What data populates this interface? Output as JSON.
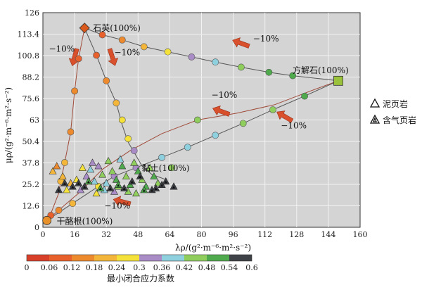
{
  "chart_data": {
    "type": "scatter",
    "title": "",
    "xlabel": "λρ/(g²·m⁻⁶·m²·s⁻²)",
    "ylabel": "μρ/(g²·m⁻⁶·m²·s⁻²)",
    "xlim": [
      0,
      160
    ],
    "ylim": [
      0,
      126
    ],
    "x_ticks": [
      "0",
      "16",
      "32",
      "48",
      "64",
      "80",
      "96",
      "112",
      "128",
      "144",
      "160"
    ],
    "y_ticks": [
      "0",
      "12.6",
      "25.2",
      "37.8",
      "50.4",
      "63",
      "75.6",
      "88.2",
      "100.8",
      "113.4",
      "126"
    ],
    "grid": true,
    "endmembers": [
      {
        "label": "石英(100%)",
        "x": 21,
        "y": 117,
        "color": "#d95a1c"
      },
      {
        "label": "方解石(100%)",
        "x": 149,
        "y": 86,
        "color": "#9bc23c"
      },
      {
        "label": "黏土(100%)",
        "x": 62,
        "y": 28,
        "color": "#6b6b6b"
      },
      {
        "label": "干酪根(100%)",
        "x": 2,
        "y": 4,
        "color": "#e8912a"
      }
    ],
    "arrow_labels": [
      "−10%",
      "−10%",
      "−10%",
      "−10%",
      "−10%",
      "−10%"
    ],
    "mixing_lines": [
      {
        "name": "石英-方解石",
        "points": [
          [
            21,
            117
          ],
          [
            30,
            113
          ],
          [
            40,
            110
          ],
          [
            51,
            106
          ],
          [
            63,
            103
          ],
          [
            75,
            100
          ],
          [
            87,
            97
          ],
          [
            100,
            94
          ],
          [
            114,
            91
          ],
          [
            126,
            89
          ],
          [
            149,
            86
          ]
        ]
      },
      {
        "name": "石英-干酪根",
        "points": [
          [
            21,
            117
          ],
          [
            18,
            99
          ],
          [
            16,
            80
          ],
          [
            14,
            56
          ],
          [
            11,
            38
          ],
          [
            9,
            27
          ],
          [
            8,
            20
          ],
          [
            6,
            14
          ],
          [
            4,
            8
          ],
          [
            2,
            4
          ]
        ]
      },
      {
        "name": "石英-黏土",
        "points": [
          [
            21,
            117
          ],
          [
            27,
            101
          ],
          [
            32,
            86
          ],
          [
            37,
            73
          ],
          [
            40,
            60
          ],
          [
            43,
            50
          ],
          [
            46,
            44
          ],
          [
            50,
            36
          ],
          [
            55,
            31
          ],
          [
            62,
            28
          ]
        ]
      },
      {
        "name": "方解石-干酪根",
        "points": [
          [
            149,
            86
          ],
          [
            135,
            80
          ],
          [
            117,
            72
          ],
          [
            98,
            67
          ],
          [
            78,
            63
          ],
          [
            60,
            55
          ],
          [
            44,
            45
          ],
          [
            30,
            34
          ],
          [
            18,
            20
          ],
          [
            6,
            8
          ],
          [
            2,
            4
          ]
        ]
      },
      {
        "name": "方解石-黏土",
        "points": [
          [
            149,
            86
          ],
          [
            132,
            77
          ],
          [
            116,
            69
          ],
          [
            101,
            61
          ],
          [
            87,
            54
          ],
          [
            73,
            47
          ],
          [
            60,
            41
          ],
          [
            47,
            35
          ],
          [
            36,
            30
          ],
          [
            28,
            24
          ],
          [
            15,
            14
          ],
          [
            2,
            4
          ]
        ]
      }
    ],
    "markers": [
      {
        "x": 30,
        "y": 113,
        "c": 0.06
      },
      {
        "x": 40,
        "y": 110,
        "c": 0.12
      },
      {
        "x": 51,
        "y": 106,
        "c": 0.18
      },
      {
        "x": 63,
        "y": 103,
        "c": 0.24
      },
      {
        "x": 75,
        "y": 100,
        "c": 0.3
      },
      {
        "x": 87,
        "y": 97,
        "c": 0.36
      },
      {
        "x": 100,
        "y": 94,
        "c": 0.42
      },
      {
        "x": 114,
        "y": 91,
        "c": 0.48
      },
      {
        "x": 126,
        "y": 89,
        "c": 0.48
      },
      {
        "x": 18,
        "y": 99,
        "c": 0.06
      },
      {
        "x": 16,
        "y": 80,
        "c": 0.12
      },
      {
        "x": 14,
        "y": 56,
        "c": 0.12
      },
      {
        "x": 11,
        "y": 38,
        "c": 0.18
      },
      {
        "x": 9,
        "y": 27,
        "c": 0.18
      },
      {
        "x": 27,
        "y": 101,
        "c": 0.06
      },
      {
        "x": 32,
        "y": 86,
        "c": 0.12
      },
      {
        "x": 37,
        "y": 73,
        "c": 0.18
      },
      {
        "x": 40,
        "y": 63,
        "c": 0.24
      },
      {
        "x": 43,
        "y": 52,
        "c": 0.24
      },
      {
        "x": 46,
        "y": 45,
        "c": 0.3
      },
      {
        "x": 132,
        "y": 77,
        "c": 0.48
      },
      {
        "x": 116,
        "y": 69,
        "c": 0.42
      },
      {
        "x": 101,
        "y": 61,
        "c": 0.42
      },
      {
        "x": 87,
        "y": 54,
        "c": 0.36
      },
      {
        "x": 78,
        "y": 63,
        "c": 0.42
      },
      {
        "x": 73,
        "y": 47,
        "c": 0.36
      },
      {
        "x": 60,
        "y": 41,
        "c": 0.36
      },
      {
        "x": 47,
        "y": 35,
        "c": 0.3
      },
      {
        "x": 36,
        "y": 30,
        "c": 0.3
      },
      {
        "x": 28,
        "y": 24,
        "c": 0.24
      },
      {
        "x": 15,
        "y": 14,
        "c": 0.18
      },
      {
        "x": 8,
        "y": 10,
        "c": 0.12
      },
      {
        "x": 4,
        "y": 7,
        "c": 0.06
      },
      {
        "x": 65,
        "y": 35,
        "c": 0.42
      }
    ],
    "mudstone_points": [
      {
        "x": 5,
        "y": 33,
        "c": 0.18
      },
      {
        "x": 7,
        "y": 36,
        "c": 0.12
      },
      {
        "x": 10,
        "y": 30,
        "c": 0.18
      },
      {
        "x": 12,
        "y": 22,
        "c": 0.24
      },
      {
        "x": 14,
        "y": 26,
        "c": 0.18
      },
      {
        "x": 17,
        "y": 28,
        "c": 0.24
      },
      {
        "x": 19,
        "y": 22,
        "c": 0.3
      },
      {
        "x": 22,
        "y": 30,
        "c": 0.3
      },
      {
        "x": 24,
        "y": 34,
        "c": 0.36
      },
      {
        "x": 26,
        "y": 27,
        "c": 0.36
      },
      {
        "x": 28,
        "y": 36,
        "c": 0.3
      },
      {
        "x": 30,
        "y": 31,
        "c": 0.42
      },
      {
        "x": 32,
        "y": 26,
        "c": 0.36
      },
      {
        "x": 33,
        "y": 39,
        "c": 0.42
      },
      {
        "x": 35,
        "y": 33,
        "c": 0.42
      },
      {
        "x": 37,
        "y": 28,
        "c": 0.48
      },
      {
        "x": 38,
        "y": 24,
        "c": 0.42
      },
      {
        "x": 40,
        "y": 36,
        "c": 0.48
      },
      {
        "x": 42,
        "y": 30,
        "c": 0.42
      },
      {
        "x": 44,
        "y": 25,
        "c": 0.48
      },
      {
        "x": 46,
        "y": 38,
        "c": 0.42
      },
      {
        "x": 48,
        "y": 33,
        "c": 0.48
      },
      {
        "x": 50,
        "y": 28,
        "c": 0.42
      },
      {
        "x": 52,
        "y": 24,
        "c": 0.48
      },
      {
        "x": 54,
        "y": 35,
        "c": 0.42
      },
      {
        "x": 56,
        "y": 30,
        "c": 0.48
      },
      {
        "x": 58,
        "y": 26,
        "c": 0.42
      },
      {
        "x": 31,
        "y": 22,
        "c": 0.36
      },
      {
        "x": 36,
        "y": 21,
        "c": 0.3
      },
      {
        "x": 43,
        "y": 21,
        "c": 0.42
      },
      {
        "x": 27,
        "y": 20,
        "c": 0.24
      },
      {
        "x": 20,
        "y": 35,
        "c": 0.24
      },
      {
        "x": 25,
        "y": 38,
        "c": 0.3
      },
      {
        "x": 39,
        "y": 40,
        "c": 0.36
      },
      {
        "x": 47,
        "y": 20,
        "c": 0.42
      }
    ],
    "gas_shale_points": [
      {
        "x": 8,
        "y": 22,
        "c": 0.6
      },
      {
        "x": 11,
        "y": 26,
        "c": 0.54
      },
      {
        "x": 15,
        "y": 24,
        "c": 0.54
      },
      {
        "x": 18,
        "y": 26,
        "c": 0.6
      },
      {
        "x": 21,
        "y": 24,
        "c": 0.54
      },
      {
        "x": 23,
        "y": 27,
        "c": 0.48
      },
      {
        "x": 34,
        "y": 23,
        "c": 0.54
      },
      {
        "x": 38,
        "y": 25,
        "c": 0.48
      },
      {
        "x": 45,
        "y": 27,
        "c": 0.54
      },
      {
        "x": 51,
        "y": 22,
        "c": 0.48
      },
      {
        "x": 55,
        "y": 22,
        "c": 0.54
      },
      {
        "x": 57,
        "y": 23,
        "c": 0.6
      },
      {
        "x": 60,
        "y": 25,
        "c": 0.6
      },
      {
        "x": 66,
        "y": 24,
        "c": 0.6
      },
      {
        "x": 62,
        "y": 27,
        "c": 0.54
      },
      {
        "x": 41,
        "y": 23,
        "c": 0.54
      },
      {
        "x": 29,
        "y": 23,
        "c": 0.48
      },
      {
        "x": 49,
        "y": 30,
        "c": 0.54
      }
    ],
    "legend": [
      "泥页岩",
      "含气页岩"
    ],
    "colorbar": {
      "label": "最小闭合应力系数",
      "ticks": [
        "0",
        "0.06",
        "0.12",
        "0.18",
        "0.24",
        "0.3",
        "0.36",
        "0.42",
        "0.48",
        "0.54",
        "0.6"
      ],
      "colors": [
        "#d9402a",
        "#e8612c",
        "#ee8a2e",
        "#f3b53a",
        "#f4e23a",
        "#a98bc6",
        "#8fd0df",
        "#8fce5c",
        "#4fa94d",
        "#3e4146"
      ]
    }
  }
}
